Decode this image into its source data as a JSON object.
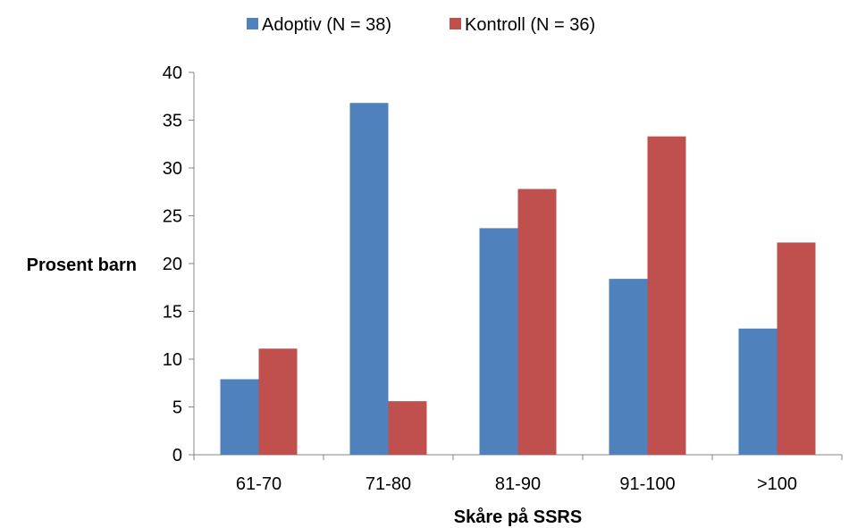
{
  "chart_data": {
    "type": "bar",
    "categories": [
      "61-70",
      "71-80",
      "81-90",
      "91-100",
      ">100"
    ],
    "series": [
      {
        "name": "Adoptiv (N = 38)",
        "color": "#4F81BD",
        "values": [
          7.9,
          36.8,
          23.7,
          18.4,
          13.2
        ]
      },
      {
        "name": "Kontroll (N = 36)",
        "color": "#C0504D",
        "values": [
          11.1,
          5.6,
          27.8,
          33.3,
          22.2
        ]
      }
    ],
    "title": "",
    "xlabel": "Skåre på SSRS",
    "ylabel": "Prosent barn",
    "ylim": [
      0,
      40
    ],
    "yticks": [
      0,
      5,
      10,
      15,
      20,
      25,
      30,
      35,
      40
    ],
    "grid": false,
    "legend_position": "top-center"
  }
}
